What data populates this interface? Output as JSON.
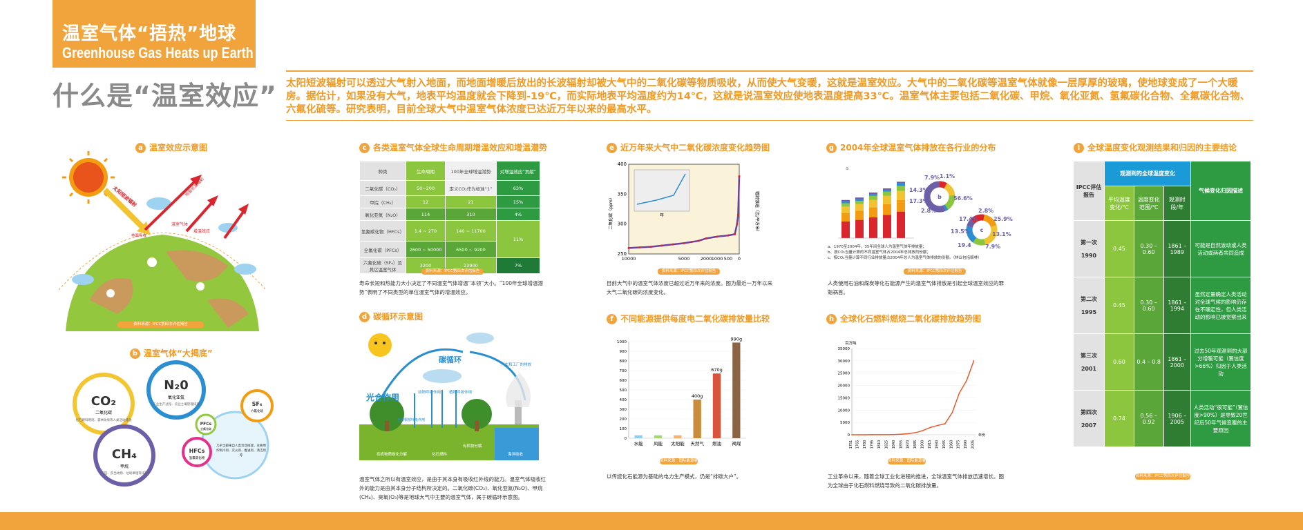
{
  "header": {
    "title_cn": "温室气体“捂热”地球",
    "title_en": "Greenhouse Gas Heats up Earth"
  },
  "intro": {
    "heading": "什么是“温室效应”",
    "text": "太阳短波辐射可以透过大气射入地面，而地面增暖后放出的长波辐射却被大气中的二氧化碳等物质吸收，从而使大气变暖，这就是温室效应。大气中的二氧化碳等温室气体就像一层厚厚的玻璃，使地球变成了一个大暖房。据估计，如果没有大气，地表平均温度就会下降到-19℃，而实际地表平均温度约为14℃，这就是说温室效应使地表温度提高33℃。温室气体主要包括二氧化碳、甲烷、氧化亚氮、氢氟碳化合物、全氟碳化合物、六氟化硫等。研究表明，目前全球大气中温室气体浓度已达近万年以来的最高水平。"
  },
  "section_a": {
    "badge": "a",
    "title": "温室效应示意图",
    "labels": {
      "sun": "太阳短波辐射",
      "reflect1": "地面长波辐射",
      "absorb": "温室气体",
      "reflect2": "增温效应",
      "ground": "地面吸收"
    },
    "source": "资料来源：IPCC第四次评估报告"
  },
  "section_b": {
    "badge": "b",
    "title": "温室气体“大揭底”",
    "bubbles": [
      {
        "name": "CO₂",
        "sub": "二氧化碳",
        "desc": "化石燃料燃烧、森林砍伐等人类活动排放"
      },
      {
        "name": "N₂0",
        "sub": "氧化亚氮",
        "desc": "工业生产过程、农业土壤管理排放"
      },
      {
        "name": "CH₄",
        "sub": "甲烷",
        "desc": "稻田、反刍动物、垃圾填埋等排放"
      },
      {
        "name": "SF₆",
        "sub": "六氟化硫",
        "desc": "温室气体"
      },
      {
        "name": "PFCs",
        "sub": "全氟化碳",
        "desc": ""
      },
      {
        "name": "HFCs",
        "sub": "氢氟碳化物",
        "desc": ""
      }
    ],
    "big_desc": "几乎全部来自人类活动排放，主要用作制冷剂、灭火剂、推进剂、清洁剂等"
  },
  "section_c": {
    "badge": "c",
    "title": "各类温室气体全球生命周期增温效应和增温潜势",
    "headers": [
      "种类",
      "生命周期",
      "100年全球增温潜势",
      "对增温效应“贡献”"
    ],
    "rows": [
      [
        "二氧化碳（CO₂）",
        "50~200",
        "定义CO₂作为标准“1”",
        "63%"
      ],
      [
        "甲烷（CH₄）",
        "12",
        "21",
        "15%"
      ],
      [
        "氧化亚氮（N₂O）",
        "114",
        "310",
        "4%"
      ],
      [
        "氢氟碳化物（HFCs）",
        "1.4 ~ 270",
        "140 ~ 11700",
        "11%"
      ],
      [
        "全氟化碳（PFCs）",
        "2600 ~ 50000",
        "6500 ~ 9200",
        ""
      ],
      [
        "六氟化硫（SF₆）及其它温室气体",
        "3200",
        "23900",
        "7%"
      ]
    ],
    "source": "资料来源：IPCC第四次评估报告",
    "note": "寿命长短和热能力大小决定了不同温室气体增温“本领”大小。“100年全球增温潜势”表明了不同类型的单位温室气体的增温效应。"
  },
  "section_d": {
    "badge": "d",
    "title": "碳循环示意图",
    "labels": {
      "cycle": "碳循环",
      "photo": "光合作用",
      "factory": "汽车和工厂的排放",
      "plant_resp": "植物呼吸作用",
      "animal_resp": "动物呼吸作用",
      "decomp": "有机物分解",
      "organic": "有机物质碳化分解",
      "fossil": "化石燃料",
      "ocean": "海洋吸收",
      "root": "植物根部呼吸作用"
    },
    "note": "温室气体之所以有温室效应，是由于其本身有吸收红外线的能力。温室气体吸收红外的能力是由其本身分子结构所决定的。二氧化碳(CO₂)、氧化亚氮(N₂O)、甲烷(CH₄)、臭氧(O₃)等是地球大气中主要的温室气体，属于碳循环示意图。"
  },
  "section_e": {
    "badge": "e",
    "title": "近万年来大气中二氧化碳浓度变化趋势图",
    "ylabel": "二氧化碳（ppm）",
    "ylabel_right": "辐射强迫（瓦/平方米）",
    "source": "资料来源：IPCC第四次评估报告",
    "note": "目前大气中的温室气体浓度已超过近万年来的浓度。图为最近一万年以来大气二氧化碳的浓度变化。",
    "inset_label": "年"
  },
  "section_f": {
    "badge": "f",
    "title": "不同能源提供每度电二氧化碳排放量比较",
    "source": "资料来源：国际能源署",
    "note": "以传统化石能源为基础的电力生产模式，仍是“排碳大户”。"
  },
  "section_g": {
    "badge": "g",
    "title": "2004年全球温室气体排放在各行业的分布",
    "source": "资料来源：IPCC第四次评估报告",
    "legend_notes": [
      "a、1970至2004年，35年间全球人为温室气体年排放量；",
      "b、按CO₂当量计算的不同温室气体占2004年总排放的份额；",
      "c、按CO₂当量计算不同行业排放量占2004年总人为温室气体排放的份额。（林业包括毁林）"
    ],
    "pie_b": {
      "label": "b",
      "values": [
        "7.9%",
        "1.1%",
        "14.3%",
        "17.3%",
        "2.8%",
        "56.6%"
      ]
    },
    "pie_c": {
      "label": "c",
      "values": [
        "2.8%",
        "17.4%",
        "25.9%",
        "13.5%",
        "19.4",
        "7.9%",
        "13.1%"
      ]
    },
    "note": "人类使用石油和煤炭等化石能源产生的温室气体排放是引起全球温室效应的罪魁祸首。"
  },
  "section_h": {
    "badge": "h",
    "title": "全球化石燃料燃烧二氧化碳排放趋势图",
    "ylabel": "百万吨",
    "xlabel": "年份",
    "source": "资料来源：国际能源署",
    "note": "工业革命以来，随着全球工业化进程的推进，全球温室气体排放迅速增长。图为全球由于化石燃料燃烧导致的二氧化碳排放量。"
  },
  "section_i": {
    "badge": "i",
    "title": "全球温度变化观测结果和归因的主要结论",
    "headers": {
      "ipcc": "IPCC评估报告",
      "observed": "观测到的全球温度变化",
      "rate": "平均温度变化/℃",
      "range": "温度变化范围/℃",
      "period": "观测时段/年",
      "attrib": "气候变化归因描述"
    },
    "rows": [
      {
        "report": "第一次",
        "year": "1990",
        "rate": "0.45",
        "range": "0.30 – 0.60",
        "period": "1861 – 1989",
        "attrib": "可能是自然波动或人类活动或两者共同造成"
      },
      {
        "report": "第二次",
        "year": "1995",
        "rate": "0.45",
        "range": "0.30 – 0.60",
        "period": "1861 – 1994",
        "attrib": "虽然定量确定人类活动对全球气候的影响仍存在不确定性，但人类活动的影响已被觉察出来"
      },
      {
        "report": "第三次",
        "year": "2001",
        "rate": "0.60",
        "range": "0.4 – 0.8",
        "period": "1861 – 2000",
        "attrib": "过去50年观测到的大部分增暖可能（置信度>66%）归因于人类活动"
      },
      {
        "report": "第四次",
        "year": "2007",
        "rate": "0.74",
        "range": "0.56 – 0.92",
        "period": "1906 – 2005",
        "attrib": "人类活动“很可能”（置信度>90%）是导致20世纪后50年气候变暖的主要原因"
      }
    ],
    "source": "资料来源：IPCC第四次评估报告"
  },
  "chart_data": [
    {
      "type": "line",
      "title": "近万年来大气中二氧化碳浓度变化趋势图",
      "ylabel": "二氧化碳（ppm）",
      "xlim": [
        10000,
        0
      ],
      "ylim": [
        250,
        400
      ],
      "xticks": [
        10000,
        5000,
        2000,
        1000,
        500,
        0
      ],
      "yticks": [
        250,
        300,
        350,
        400
      ],
      "x": [
        10000,
        9000,
        8000,
        7000,
        6000,
        5000,
        4000,
        3000,
        2000,
        1000,
        500,
        200,
        100,
        50,
        0
      ],
      "values": [
        260,
        261,
        262,
        264,
        266,
        268,
        270,
        272,
        276,
        279,
        281,
        283,
        300,
        315,
        380
      ]
    },
    {
      "type": "bar",
      "title": "不同能源提供每度电二氧化碳排放量比较",
      "categories": [
        "水能",
        "风能",
        "太阳能",
        "天然气",
        "燃油",
        "褐煤"
      ],
      "values": [
        30,
        30,
        30,
        400,
        670,
        990
      ],
      "ylim": [
        0,
        1000
      ],
      "yticks": [
        0,
        100,
        200,
        300,
        400,
        500,
        600,
        700,
        800,
        900,
        1000
      ],
      "labels": [
        "",
        "",
        "",
        "400g",
        "670g",
        "990g"
      ]
    },
    {
      "type": "line",
      "title": "全球化石燃料燃烧二氧化碳排放趋势图",
      "ylabel": "百万吨",
      "xlabel": "年份",
      "ylim": [
        0,
        35000
      ],
      "yticks": [
        0,
        5000,
        10000,
        15000,
        20000,
        25000,
        30000,
        35000
      ],
      "x": [
        1751,
        1765,
        1780,
        1795,
        1810,
        1825,
        1840,
        1855,
        1870,
        1885,
        1900,
        1915,
        1930,
        1945,
        1960,
        1975,
        1990,
        2005
      ],
      "values": [
        10,
        12,
        15,
        20,
        30,
        50,
        100,
        250,
        500,
        900,
        1800,
        3000,
        3800,
        4500,
        9000,
        17000,
        22000,
        30000
      ]
    }
  ]
}
